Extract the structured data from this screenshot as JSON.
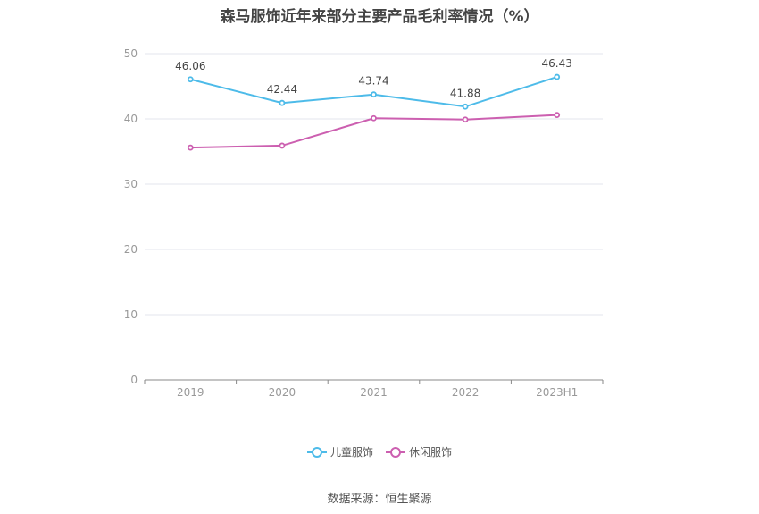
{
  "chart_data": {
    "type": "line",
    "title": "森马服饰近年来部分主要产品毛利率情况（%）",
    "categories": [
      "2019",
      "2020",
      "2021",
      "2022",
      "2023H1"
    ],
    "ylim": [
      0,
      50
    ],
    "yticks": [
      "0",
      "10",
      "20",
      "30",
      "40",
      "50"
    ],
    "grid": true,
    "legend_position": "bottom",
    "series": [
      {
        "name": "儿童服饰",
        "color": "#4dbbe9",
        "values": [
          46.06,
          42.44,
          43.74,
          41.88,
          46.43
        ],
        "labels": [
          "46.06",
          "42.44",
          "43.74",
          "41.88",
          "46.43"
        ]
      },
      {
        "name": "休闲服饰",
        "color": "#cc5fb0",
        "values": [
          35.6,
          35.9,
          40.1,
          39.9,
          40.6
        ],
        "labels": []
      }
    ],
    "source": "数据来源：恒生聚源"
  }
}
